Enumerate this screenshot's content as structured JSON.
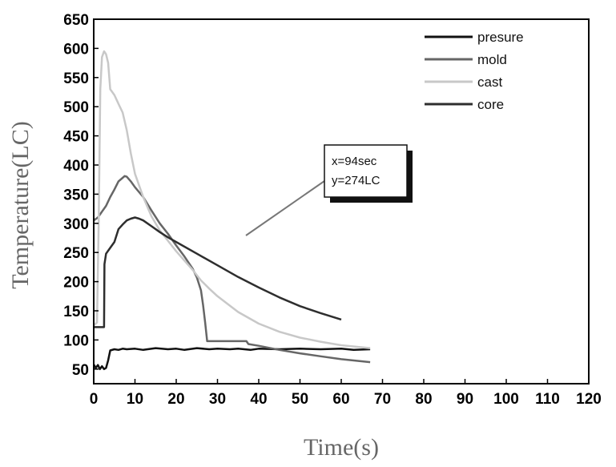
{
  "chart_data": {
    "type": "line",
    "xlabel": "Time(s)",
    "ylabel": "Temperature(LC)",
    "xlim": [
      0,
      120
    ],
    "ylim": [
      25,
      650
    ],
    "x_ticks": [
      0,
      10,
      20,
      30,
      40,
      50,
      60,
      70,
      80,
      90,
      100,
      110,
      120
    ],
    "y_ticks": [
      50,
      100,
      150,
      200,
      250,
      300,
      350,
      400,
      450,
      500,
      550,
      600,
      650
    ],
    "grid": false,
    "legend_position": "top-right",
    "series": [
      {
        "name": "presure",
        "color": "#111111",
        "points": [
          [
            0,
            58
          ],
          [
            0.5,
            52
          ],
          [
            1,
            57
          ],
          [
            1.5,
            50
          ],
          [
            2,
            55
          ],
          [
            2.5,
            50
          ],
          [
            3,
            52
          ],
          [
            3.5,
            65
          ],
          [
            4,
            82
          ],
          [
            5,
            84
          ],
          [
            6,
            83
          ],
          [
            7,
            85
          ],
          [
            8,
            84
          ],
          [
            10,
            85
          ],
          [
            12,
            83
          ],
          [
            15,
            86
          ],
          [
            18,
            84
          ],
          [
            20,
            85
          ],
          [
            22,
            83
          ],
          [
            25,
            86
          ],
          [
            28,
            84
          ],
          [
            30,
            85
          ],
          [
            33,
            84
          ],
          [
            35,
            85
          ],
          [
            38,
            83
          ],
          [
            40,
            85
          ],
          [
            45,
            84
          ],
          [
            50,
            85
          ],
          [
            55,
            84
          ],
          [
            60,
            85
          ],
          [
            63,
            83
          ],
          [
            67,
            84
          ]
        ]
      },
      {
        "name": "mold",
        "color": "#666666",
        "points": [
          [
            0,
            305
          ],
          [
            1,
            310
          ],
          [
            2,
            320
          ],
          [
            3,
            330
          ],
          [
            4,
            345
          ],
          [
            5,
            358
          ],
          [
            6,
            372
          ],
          [
            7,
            378
          ],
          [
            7.5,
            381
          ],
          [
            8,
            380
          ],
          [
            9,
            372
          ],
          [
            10,
            362
          ],
          [
            12,
            345
          ],
          [
            14,
            322
          ],
          [
            16,
            300
          ],
          [
            18,
            282
          ],
          [
            20,
            262
          ],
          [
            22,
            243
          ],
          [
            24,
            222
          ],
          [
            25,
            207
          ],
          [
            26,
            185
          ],
          [
            26.5,
            160
          ],
          [
            27,
            130
          ],
          [
            27.5,
            98
          ],
          [
            30,
            98
          ],
          [
            35,
            98
          ],
          [
            37,
            98
          ],
          [
            37.5,
            93
          ],
          [
            40,
            90
          ],
          [
            45,
            83
          ],
          [
            50,
            77
          ],
          [
            55,
            72
          ],
          [
            60,
            67
          ],
          [
            67,
            62
          ]
        ]
      },
      {
        "name": "cast",
        "color": "#c8c8c8",
        "points": [
          [
            0,
            125
          ],
          [
            0.8,
            130
          ],
          [
            1.2,
            300
          ],
          [
            1.6,
            530
          ],
          [
            2,
            585
          ],
          [
            2.5,
            595
          ],
          [
            3,
            590
          ],
          [
            3.5,
            575
          ],
          [
            4,
            530
          ],
          [
            5,
            520
          ],
          [
            6,
            505
          ],
          [
            7,
            490
          ],
          [
            8,
            460
          ],
          [
            9,
            420
          ],
          [
            10,
            385
          ],
          [
            12,
            345
          ],
          [
            14,
            312
          ],
          [
            16,
            288
          ],
          [
            18,
            270
          ],
          [
            20,
            252
          ],
          [
            22,
            236
          ],
          [
            24,
            220
          ],
          [
            26,
            202
          ],
          [
            28,
            188
          ],
          [
            30,
            175
          ],
          [
            35,
            148
          ],
          [
            40,
            128
          ],
          [
            45,
            114
          ],
          [
            50,
            104
          ],
          [
            55,
            97
          ],
          [
            60,
            91
          ],
          [
            67,
            86
          ]
        ]
      },
      {
        "name": "core",
        "color": "#2e2e2e",
        "points": [
          [
            0,
            122
          ],
          [
            1,
            122
          ],
          [
            2,
            122
          ],
          [
            2.5,
            122
          ],
          [
            2.6,
            230
          ],
          [
            3,
            248
          ],
          [
            4,
            258
          ],
          [
            5,
            268
          ],
          [
            6,
            290
          ],
          [
            7,
            298
          ],
          [
            8,
            305
          ],
          [
            9,
            308
          ],
          [
            10,
            310
          ],
          [
            11,
            308
          ],
          [
            12,
            305
          ],
          [
            14,
            295
          ],
          [
            16,
            285
          ],
          [
            18,
            276
          ],
          [
            20,
            268
          ],
          [
            25,
            248
          ],
          [
            30,
            228
          ],
          [
            35,
            208
          ],
          [
            40,
            190
          ],
          [
            45,
            173
          ],
          [
            50,
            158
          ],
          [
            55,
            146
          ],
          [
            60,
            135
          ]
        ]
      }
    ],
    "annotation": {
      "lines": [
        "x=94sec",
        "y=274LC"
      ]
    }
  }
}
